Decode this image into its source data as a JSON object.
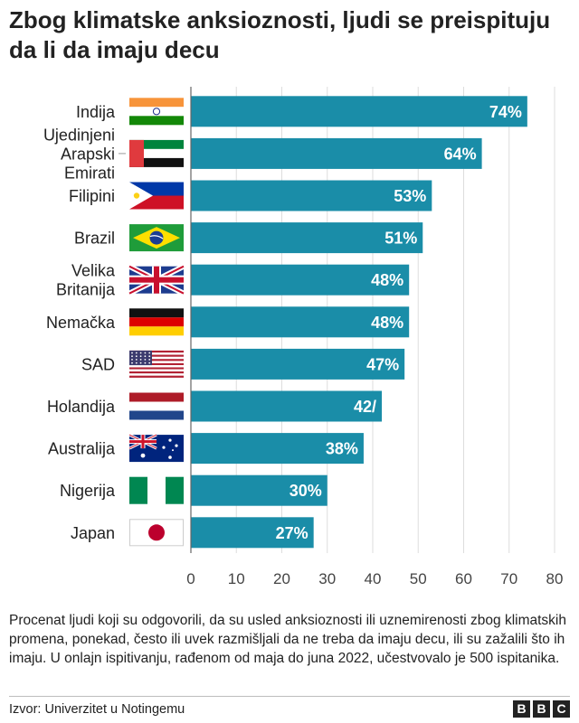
{
  "title": "Zbog klimatske anksioznosti, ljudi se preispituju da li da imaju decu",
  "chart_data": {
    "type": "bar",
    "orientation": "horizontal",
    "categories": [
      {
        "label": "Indija",
        "flag": "flag-india"
      },
      {
        "label": "Ujedinjeni Arapski Emirati",
        "flag": "flag-uae"
      },
      {
        "label": "Filipini",
        "flag": "flag-philippines"
      },
      {
        "label": "Brazil",
        "flag": "flag-brazil"
      },
      {
        "label": "Velika Britanija",
        "flag": "flag-uk"
      },
      {
        "label": "Nemačka",
        "flag": "flag-germany"
      },
      {
        "label": "SAD",
        "flag": "flag-usa"
      },
      {
        "label": "Holandija",
        "flag": "flag-netherlands"
      },
      {
        "label": "Australija",
        "flag": "flag-australia"
      },
      {
        "label": "Nigerija",
        "flag": "flag-nigeria"
      },
      {
        "label": "Japan",
        "flag": "flag-japan"
      }
    ],
    "values": [
      74,
      64,
      53,
      51,
      48,
      48,
      47,
      42,
      38,
      30,
      27
    ],
    "value_labels": [
      "74%",
      "64%",
      "53%",
      "51%",
      "48%",
      "48%",
      "47%",
      "42/",
      "38%",
      "30%",
      "27%"
    ],
    "xlim": [
      0,
      80
    ],
    "xticks": [
      0,
      10,
      20,
      30,
      40,
      50,
      60,
      70,
      80
    ],
    "bar_color": "#1a8da8",
    "label_color": "#ffffff"
  },
  "note": "Procenat ljudi koji su odgovorili, da su usled anksioznosti ili uznemirenosti zbog klimatskih promena, ponekad, često ili uvek razmišljali da ne treba da imaju decu, ili su zažalili što ih imaju. U onlajn ispitivanju, rađenom od maja do juna 2022, učestvovalo je 500 ispitanika.",
  "source": "Izvor: Univerzitet u Notingemu",
  "logo": [
    "B",
    "B",
    "C"
  ]
}
